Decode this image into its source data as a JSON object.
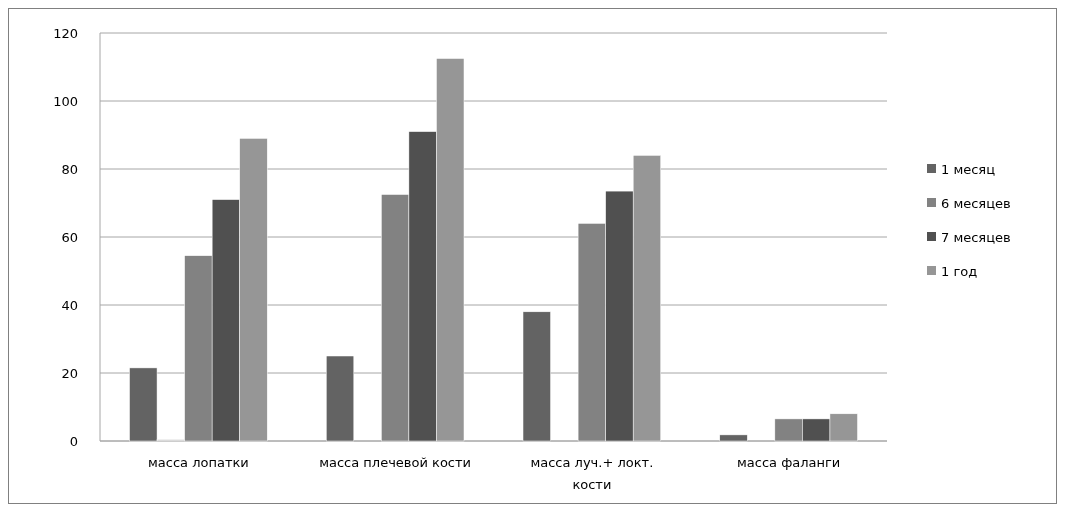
{
  "chart_data": {
    "type": "bar",
    "categories": [
      "масса лопатки",
      "масса плечевой кости",
      "масса луч.+ локт. кости",
      "масса фаланги"
    ],
    "series": [
      {
        "name": "1 месяц",
        "color": "#636363",
        "values": [
          21.5,
          25,
          38,
          1.8
        ]
      },
      {
        "color": "#d0d0d0",
        "values": [
          0.5,
          null,
          null,
          null
        ]
      },
      {
        "name": "6 месяцев",
        "color": "#828282",
        "values": [
          54.5,
          72.5,
          64,
          6.5
        ]
      },
      {
        "name": "7 месяцев",
        "color": "#505050",
        "values": [
          71,
          91,
          73.5,
          6.5
        ]
      },
      {
        "name": "1 год",
        "color": "#969696",
        "values": [
          89,
          112.5,
          84,
          8
        ]
      }
    ],
    "ylim": [
      0,
      120
    ],
    "yticks": [
      0,
      20,
      40,
      60,
      80,
      100,
      120
    ],
    "grid": "y",
    "legend": "right"
  }
}
